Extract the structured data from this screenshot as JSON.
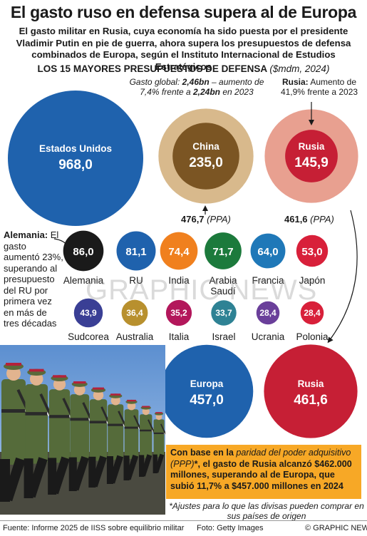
{
  "title": "El gasto ruso en defensa supera al de Europa",
  "subtitle": "El gasto militar en Rusia, cuya economía ha sido puesta por el presidente Vladimir Putin en pie de guerra, ahora supera los presupuestos de defensa combinados de Europa, según el Instituto Internacional de Estudios Estratégicos",
  "chart_heading": "LOS 15 MAYORES PRESUPUESTOS DE DEFENSA",
  "chart_unit": "($mdm, 2024)",
  "notes": {
    "global_prefix": "Gasto global:",
    "global_value_2024": "2,46bn",
    "global_mid": "– aumento de 7,4% frente a",
    "global_value_2023": "2,24bn",
    "global_suffix": "en 2023",
    "russia_label": "Rusia:",
    "russia_text": "Aumento de 41,9% frente a 2023",
    "germany_label": "Alemania:",
    "germany_text": "El gasto aumentó 23%, superando al presupuesto del RU por primera vez en más de tres décadas",
    "ppp_china_value": "476,7",
    "ppp_russia_value": "461,6",
    "ppp_tag": "(PPA)"
  },
  "chart_data": {
    "type": "bubble",
    "title": "LOS 15 MAYORES PRESUPUESTOS DE DEFENSA",
    "unit": "$mdm, 2024",
    "budgets": [
      {
        "country": "Estados Unidos",
        "value": 968.0,
        "label": "968,0",
        "color": "#1f62ad"
      },
      {
        "country": "China",
        "value": 235.0,
        "label": "235,0",
        "color": "#7b5523",
        "ppp": 476.7,
        "ppp_label": "476,7",
        "ppp_color": "#d8b98c"
      },
      {
        "country": "Rusia",
        "value": 145.9,
        "label": "145,9",
        "color": "#c61f35",
        "ppp": 461.6,
        "ppp_label": "461,6",
        "ppp_color": "#e8a090"
      },
      {
        "country": "Alemania",
        "value": 86.0,
        "label": "86,0",
        "color": "#1a1a1a"
      },
      {
        "country": "RU",
        "value": 81.1,
        "label": "81,1",
        "color": "#1f62ad"
      },
      {
        "country": "India",
        "value": 74.4,
        "label": "74,4",
        "color": "#f0801e"
      },
      {
        "country": "Arabia Saudí",
        "value": 71.7,
        "label": "71,7",
        "color": "#1c7a3c"
      },
      {
        "country": "Francia",
        "value": 64.0,
        "label": "64,0",
        "color": "#1f78b8"
      },
      {
        "country": "Japón",
        "value": 53.0,
        "label": "53,0",
        "color": "#d8203a"
      },
      {
        "country": "Sudcorea",
        "value": 43.9,
        "label": "43,9",
        "color": "#3a3f95"
      },
      {
        "country": "Australia",
        "value": 36.4,
        "label": "36,4",
        "color": "#b8902e"
      },
      {
        "country": "Italia",
        "value": 35.2,
        "label": "35,2",
        "color": "#b3175b"
      },
      {
        "country": "Israel",
        "value": 33.7,
        "label": "33,7",
        "color": "#2e8294"
      },
      {
        "country": "Ucrania",
        "value": 28.4,
        "label": "28,4",
        "color": "#6a3f9a"
      },
      {
        "country": "Polonia",
        "value": 28.4,
        "label": "28,4",
        "color": "#d8203a"
      }
    ],
    "ppp_comparison": [
      {
        "region": "Europa",
        "value": 457.0,
        "label": "457,0",
        "color": "#1f62ad"
      },
      {
        "region": "Rusia",
        "value": 461.6,
        "label": "461,6",
        "color": "#c61f35"
      }
    ]
  },
  "callout": {
    "pre": "Con base en la",
    "italic": "paridad del poder adquisitivo (PPP)",
    "post": "*, el gasto de Rusia alcanzó $462.000 millones, superando al de Europa, que subió 11,7% a $457.000 millones en 2024"
  },
  "footnote": "*Ajustes para lo que las divisas pueden comprar en sus países de origen",
  "footer": {
    "source": "Fuente: Informe 2025 de IISS sobre equilibrio militar",
    "photo": "Foto: Getty Images",
    "brand": "© GRAPHIC NEWS"
  },
  "watermark": "GRAPHIC NEWS"
}
